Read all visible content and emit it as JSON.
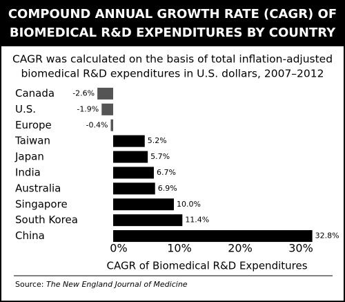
{
  "chart_data": {
    "type": "bar",
    "orientation": "horizontal",
    "title": [
      "COMPOUND ANNUAL GROWTH RATE (CAGR) OF",
      "BIOMEDICAL R&D EXPENDITURES BY COUNTRY"
    ],
    "subtitle": [
      "CAGR was calculated on the basis of total inflation-adjusted",
      "biomedical R&D expenditures in U.S. dollars, 2007–2012"
    ],
    "categories": [
      "Canada",
      "U.S.",
      "Europe",
      "Taiwan",
      "Japan",
      "India",
      "Australia",
      "Singapore",
      "South Korea",
      "China"
    ],
    "values": [
      -2.6,
      -1.9,
      -0.4,
      5.2,
      5.7,
      6.7,
      6.9,
      10.0,
      11.4,
      32.8
    ],
    "value_labels": [
      "-2.6%",
      "-1.9%",
      "-0.4%",
      "5.2%",
      "5.7%",
      "6.7%",
      "6.9%",
      "10.0%",
      "11.4%",
      "32.8%"
    ],
    "color": "#000000",
    "negative_color": "#555555",
    "xlim": [
      -5,
      35
    ],
    "xticks": [
      {
        "value": 0,
        "label": "0%"
      },
      {
        "value": 10,
        "label": "10%"
      },
      {
        "value": 20,
        "label": "20%"
      },
      {
        "value": 30,
        "label": "30%"
      }
    ],
    "x_label": "CAGR of Biomedical R&D Expenditures",
    "source_prefix": "Source:",
    "source": "The New England Journal of Medicine",
    "grid": false
  }
}
